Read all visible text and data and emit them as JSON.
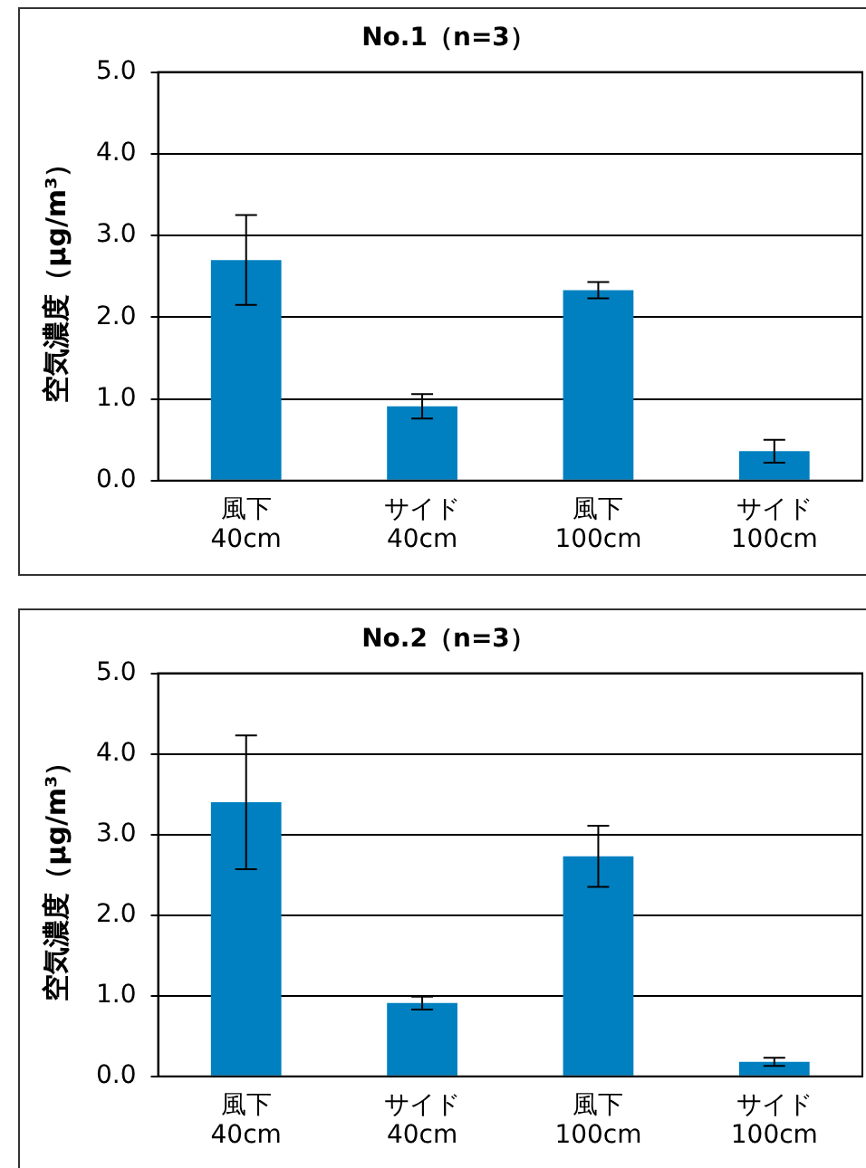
{
  "chart_data": [
    {
      "type": "bar",
      "title": "No.1（n=3）",
      "ylabel": "空気濃度（μg/m³）",
      "categories": [
        "風下\n40cm",
        "サイド\n40cm",
        "風下\n100cm",
        "サイド\n100cm"
      ],
      "values": [
        2.7,
        0.91,
        2.33,
        0.36
      ],
      "errors": [
        0.55,
        0.15,
        0.1,
        0.14
      ],
      "color": "#0080c0",
      "ylim": [
        0,
        5
      ],
      "yticks": [
        {
          "value": 0,
          "label": "0.0"
        },
        {
          "value": 1,
          "label": "1.0"
        },
        {
          "value": 2,
          "label": "2.0"
        },
        {
          "value": 3,
          "label": "3.0"
        },
        {
          "value": 4,
          "label": "4.0"
        },
        {
          "value": 5,
          "label": "5.0"
        }
      ],
      "grid": "y",
      "legend": false
    },
    {
      "type": "bar",
      "title": "No.2（n=3）",
      "ylabel": "空気濃度（μg/m³）",
      "categories": [
        "風下\n40cm",
        "サイド\n40cm",
        "風下\n100cm",
        "サイド\n100cm"
      ],
      "values": [
        3.4,
        0.91,
        2.73,
        0.18
      ],
      "errors": [
        0.83,
        0.08,
        0.38,
        0.05
      ],
      "color": "#0080c0",
      "ylim": [
        0,
        5
      ],
      "yticks": [
        {
          "value": 0,
          "label": "0.0"
        },
        {
          "value": 1,
          "label": "1.0"
        },
        {
          "value": 2,
          "label": "2.0"
        },
        {
          "value": 3,
          "label": "3.0"
        },
        {
          "value": 4,
          "label": "4.0"
        },
        {
          "value": 5,
          "label": "5.0"
        }
      ],
      "grid": "y",
      "legend": false
    }
  ]
}
